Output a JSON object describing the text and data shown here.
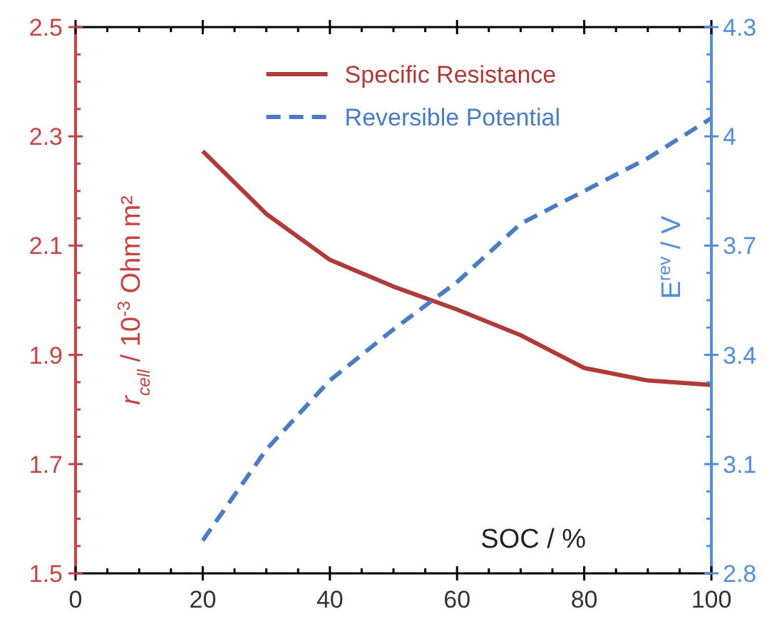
{
  "chart_data": {
    "type": "line",
    "xlabel": "SOC / %",
    "ylabel": "r$_{cell}$ / 10$^{-3}$ Ohm m²",
    "y2label": "E$^{rev}$ / V",
    "x": [
      20,
      30,
      40,
      50,
      60,
      70,
      80,
      90,
      100
    ],
    "series": [
      {
        "name": "Specific Resistance",
        "color": "#b03a3a",
        "line_style": "solid",
        "values": [
          2.273,
          2.158,
          2.074,
          2.025,
          1.983,
          1.936,
          1.876,
          1.853,
          1.845
        ]
      },
      {
        "name": "Reversible Potential",
        "color": "#4a7cc4",
        "line_style": "dashed",
        "axis": "y2",
        "values": [
          2.89,
          3.14,
          3.33,
          3.47,
          3.6,
          3.76,
          3.85,
          3.94,
          4.05
        ]
      }
    ],
    "xlim": [
      0,
      100
    ],
    "xticks": [
      0,
      {
        "value": 5,
        "label": null
      },
      {
        "value": 10,
        "label": null
      },
      {
        "value": 15,
        "label": null
      },
      20,
      {
        "value": 25,
        "label": null
      },
      {
        "value": 30,
        "label": null
      },
      {
        "value": 35,
        "label": null
      },
      40,
      {
        "value": 45,
        "label": null
      },
      {
        "value": 50,
        "label": null
      },
      {
        "value": 55,
        "label": null
      },
      60,
      {
        "value": 65,
        "label": null
      },
      {
        "value": 70,
        "label": null
      },
      {
        "value": 75,
        "label": null
      },
      80,
      {
        "value": 85,
        "label": null
      },
      {
        "value": 90,
        "label": null
      },
      {
        "value": 95,
        "label": null
      },
      100
    ],
    "ylim": [
      1.5,
      2.5
    ],
    "yticks": [
      1.5,
      {
        "value": 1.55,
        "label": null
      },
      {
        "value": 1.6,
        "label": null
      },
      {
        "value": 1.65,
        "label": null
      },
      1.7,
      {
        "value": 1.75,
        "label": null
      },
      {
        "value": 1.8,
        "label": null
      },
      {
        "value": 1.85,
        "label": null
      },
      1.9,
      {
        "value": 1.95,
        "label": null
      },
      {
        "value": 2.0,
        "label": null
      },
      {
        "value": 2.05,
        "label": null
      },
      2.1,
      {
        "value": 2.15,
        "label": null
      },
      {
        "value": 2.2,
        "label": null
      },
      {
        "value": 2.25,
        "label": null
      },
      2.3,
      {
        "value": 2.35,
        "label": null
      },
      {
        "value": 2.4,
        "label": null
      },
      {
        "value": 2.45,
        "label": null
      },
      2.5
    ],
    "y2lim": [
      2.8,
      4.3
    ],
    "y2ticks": [
      2.8,
      {
        "value": 2.875,
        "label": null
      },
      {
        "value": 2.95,
        "label": null
      },
      {
        "value": 3.025,
        "label": null
      },
      3.1,
      {
        "value": 3.175,
        "label": null
      },
      {
        "value": 3.25,
        "label": null
      },
      {
        "value": 3.325,
        "label": null
      },
      3.4,
      {
        "value": 3.475,
        "label": null
      },
      {
        "value": 3.55,
        "label": null
      },
      {
        "value": 3.625,
        "label": null
      },
      3.7,
      {
        "value": 3.775,
        "label": null
      },
      {
        "value": 3.85,
        "label": null
      },
      {
        "value": 3.925,
        "label": null
      },
      4,
      {
        "value": 4.075,
        "label": null
      },
      {
        "value": 4.15,
        "label": null
      },
      {
        "value": 4.225,
        "label": null
      },
      4.3
    ],
    "legend": "top",
    "grid": false,
    "marker": "none"
  }
}
